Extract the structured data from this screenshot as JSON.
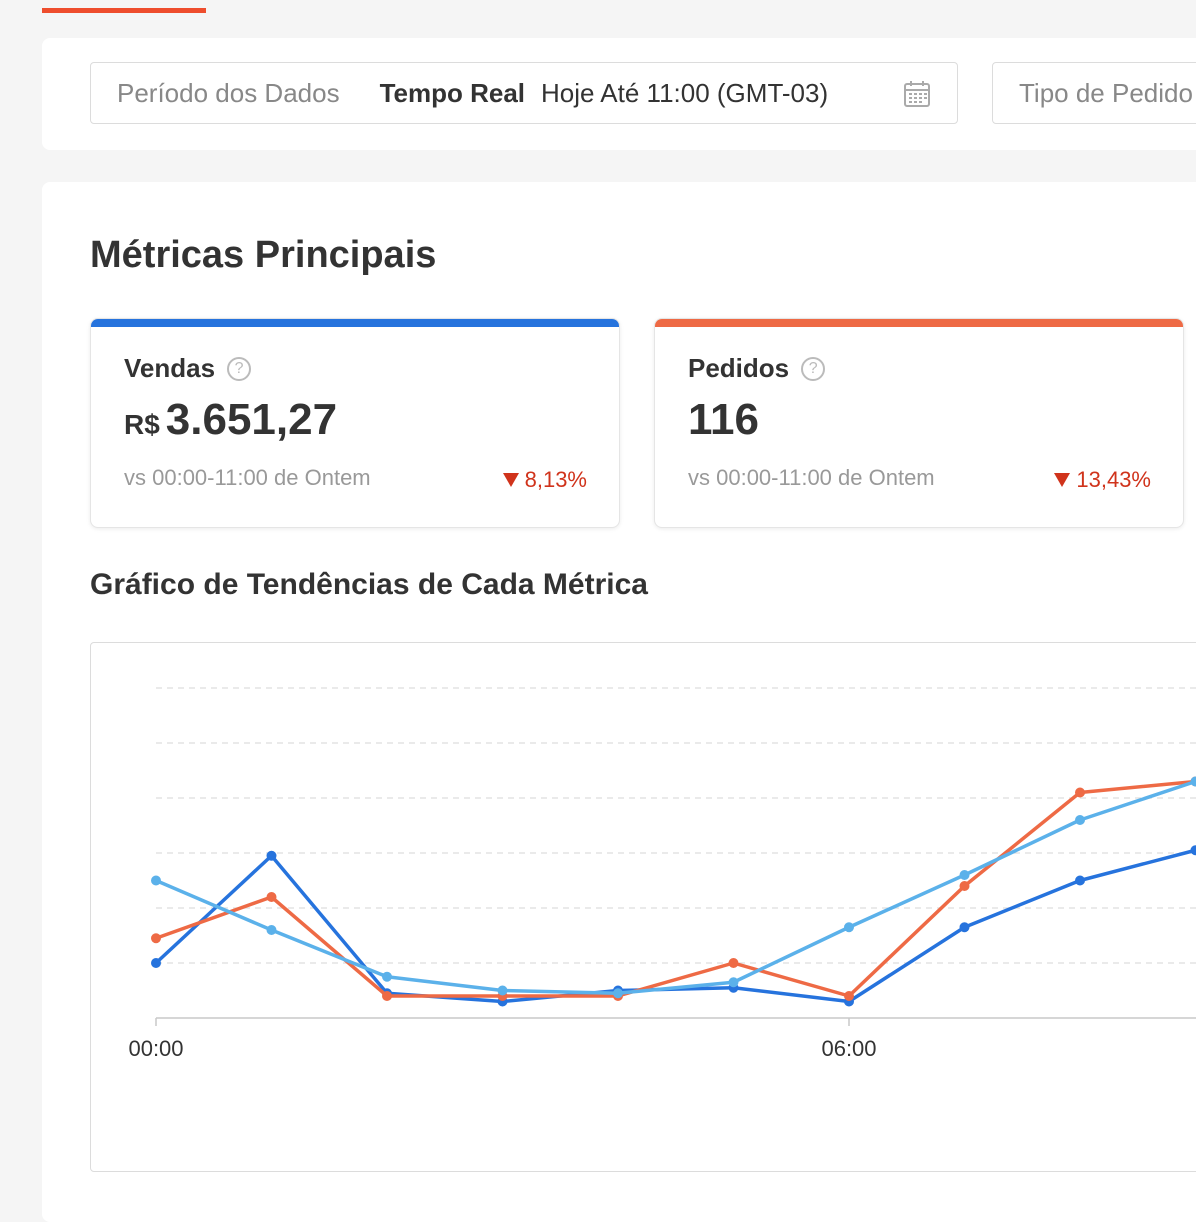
{
  "header": {
    "period_label": "Período dos Dados",
    "period_mode": "Tempo Real",
    "period_value": "Hoje Até 11:00 (GMT-03)",
    "order_type_label": "Tipo de Pedido"
  },
  "main": {
    "title": "Métricas Principais",
    "metrics": [
      {
        "name": "Vendas",
        "currency": "R$",
        "value": "3.651,27",
        "compare": "vs 00:00-11:00 de Ontem",
        "change": "8,13%",
        "color": "#2673dd"
      },
      {
        "name": "Pedidos",
        "value": "116",
        "compare": "vs 00:00-11:00 de Ontem",
        "change": "13,43%",
        "color": "#ee6a45"
      }
    ],
    "chart_title": "Gráfico de Tendências de Cada Métrica"
  },
  "colors": {
    "accent": "#ee4d2d",
    "sales": "#2673dd",
    "orders": "#ee6a45",
    "third_series": "#5bb1ea",
    "negative": "#d0331b"
  },
  "chart_data": {
    "type": "line",
    "x": [
      0,
      1,
      2,
      3,
      4,
      5,
      6,
      7,
      8,
      9
    ],
    "xticks": [
      0,
      6
    ],
    "xtick_labels": [
      "00:00",
      "06:00"
    ],
    "ylim": [
      0,
      6
    ],
    "grid": true,
    "legend": "none",
    "series": [
      {
        "color": "#2673dd",
        "values": [
          1.0,
          2.95,
          0.45,
          0.3,
          0.5,
          0.55,
          0.3,
          1.65,
          2.5,
          3.05
        ]
      },
      {
        "color": "#ee6a45",
        "values": [
          1.45,
          2.2,
          0.4,
          0.4,
          0.4,
          1.0,
          0.4,
          2.4,
          4.1,
          4.3
        ]
      },
      {
        "color": "#5bb1ea",
        "values": [
          2.5,
          1.6,
          0.75,
          0.5,
          0.45,
          0.65,
          1.65,
          2.6,
          3.6,
          4.3
        ]
      }
    ]
  }
}
